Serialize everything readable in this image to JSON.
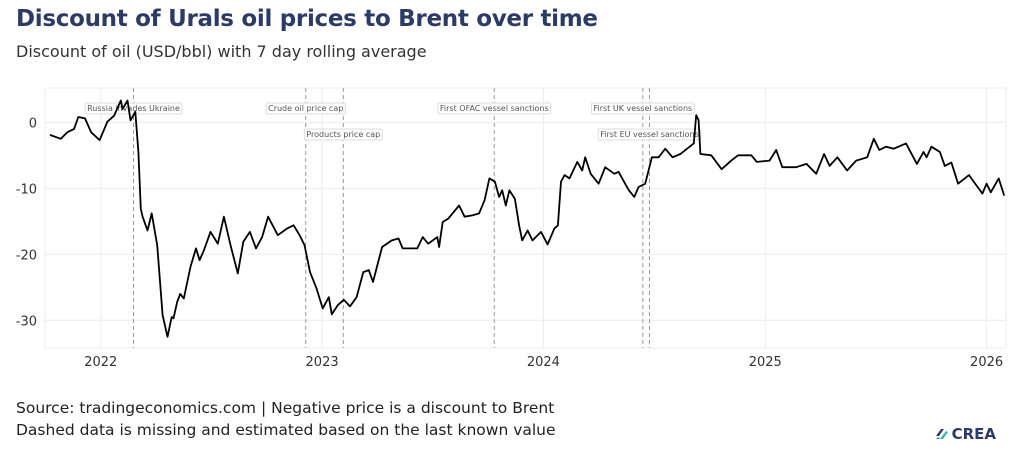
{
  "title": "Discount of Urals oil prices to Brent over time",
  "subtitle": "Discount of oil (USD/bbl) with 7 day rolling average",
  "footer": {
    "line1": "Source: tradingeconomics.com | Negative price is a discount to Brent",
    "line2": "Dashed data is missing and estimated based on the last known value"
  },
  "logo": {
    "text": "CREA",
    "colors": [
      "#2c3a66",
      "#35b7a4",
      "#4a7fc1"
    ]
  },
  "chart_data": {
    "type": "line",
    "title": "",
    "xlabel": "",
    "ylabel": "",
    "xlim": [
      "2021-10-01",
      "2026-02-02"
    ],
    "ylim": [
      -34.2,
      5.2
    ],
    "x_ticks": [
      {
        "date": "2022-01-01",
        "label": "2022"
      },
      {
        "date": "2023-01-01",
        "label": "2023"
      },
      {
        "date": "2024-01-01",
        "label": "2024"
      },
      {
        "date": "2025-01-01",
        "label": "2025"
      },
      {
        "date": "2026-01-01",
        "label": "2026"
      }
    ],
    "y_ticks": [
      0,
      -10,
      -20,
      -30
    ],
    "grid": true,
    "line_color": "#000000",
    "events": [
      {
        "date": "2022-02-24",
        "label": "Russia invades Ukraine",
        "row": 1
      },
      {
        "date": "2022-12-05",
        "label": "Crude oil price cap",
        "row": 1
      },
      {
        "date": "2023-02-05",
        "label": "Products price cap",
        "row": 2
      },
      {
        "date": "2023-10-12",
        "label": "First OFAC vessel sanctions",
        "row": 1
      },
      {
        "date": "2024-06-13",
        "label": "First UK vessel sanctions",
        "row": 1
      },
      {
        "date": "2024-06-24",
        "label": "First EU vessel sanctions",
        "row": 2
      }
    ],
    "series": [
      {
        "points": [
          [
            "2021-10-09",
            -1.9
          ],
          [
            "2021-10-27",
            -2.5
          ],
          [
            "2021-11-07",
            -1.5
          ],
          [
            "2021-11-18",
            -1.0
          ],
          [
            "2021-11-25",
            0.8
          ],
          [
            "2021-12-06",
            0.6
          ],
          [
            "2021-12-16",
            -1.5
          ],
          [
            "2021-12-30",
            -2.7
          ],
          [
            "2022-01-12",
            0.1
          ],
          [
            "2022-01-23",
            1.0
          ],
          [
            "2022-02-03",
            3.3
          ],
          [
            "2022-02-06",
            2.0
          ],
          [
            "2022-02-14",
            3.3
          ],
          [
            "2022-02-19",
            0.3
          ],
          [
            "2022-02-27",
            1.6
          ],
          [
            "2022-03-04",
            -4.5
          ],
          [
            "2022-03-08",
            -13.1
          ],
          [
            "2022-03-11",
            -14.3
          ],
          [
            "2022-03-19",
            -16.4
          ],
          [
            "2022-03-26",
            -13.8
          ],
          [
            "2022-04-04",
            -18.6
          ],
          [
            "2022-04-13",
            -29.2
          ],
          [
            "2022-04-21",
            -32.5
          ],
          [
            "2022-04-28",
            -29.5
          ],
          [
            "2022-05-01",
            -29.7
          ],
          [
            "2022-05-07",
            -27.2
          ],
          [
            "2022-05-12",
            -26.0
          ],
          [
            "2022-05-18",
            -26.7
          ],
          [
            "2022-05-29",
            -21.9
          ],
          [
            "2022-06-07",
            -19.1
          ],
          [
            "2022-06-13",
            -20.9
          ],
          [
            "2022-06-20",
            -19.4
          ],
          [
            "2022-07-01",
            -16.6
          ],
          [
            "2022-07-13",
            -18.4
          ],
          [
            "2022-07-23",
            -14.3
          ],
          [
            "2022-08-03",
            -18.6
          ],
          [
            "2022-08-15",
            -22.9
          ],
          [
            "2022-08-24",
            -18.1
          ],
          [
            "2022-09-04",
            -16.6
          ],
          [
            "2022-09-14",
            -19.1
          ],
          [
            "2022-09-24",
            -17.4
          ],
          [
            "2022-10-04",
            -14.3
          ],
          [
            "2022-10-20",
            -17.1
          ],
          [
            "2022-11-04",
            -16.1
          ],
          [
            "2022-11-15",
            -15.6
          ],
          [
            "2022-11-25",
            -17.1
          ],
          [
            "2022-12-03",
            -18.6
          ],
          [
            "2022-12-12",
            -22.7
          ],
          [
            "2022-12-23",
            -25.2
          ],
          [
            "2023-01-02",
            -28.2
          ],
          [
            "2023-01-12",
            -26.5
          ],
          [
            "2023-01-17",
            -29.1
          ],
          [
            "2023-01-27",
            -27.7
          ],
          [
            "2023-02-06",
            -26.9
          ],
          [
            "2023-02-16",
            -27.9
          ],
          [
            "2023-02-27",
            -26.5
          ],
          [
            "2023-03-10",
            -22.7
          ],
          [
            "2023-03-19",
            -22.4
          ],
          [
            "2023-03-26",
            -24.2
          ],
          [
            "2023-04-10",
            -18.9
          ],
          [
            "2023-04-26",
            -17.9
          ],
          [
            "2023-05-07",
            -17.6
          ],
          [
            "2023-05-14",
            -19.1
          ],
          [
            "2023-06-07",
            -19.1
          ],
          [
            "2023-06-16",
            -17.4
          ],
          [
            "2023-06-25",
            -18.4
          ],
          [
            "2023-07-10",
            -17.4
          ],
          [
            "2023-07-13",
            -18.9
          ],
          [
            "2023-07-19",
            -15.1
          ],
          [
            "2023-07-28",
            -14.6
          ],
          [
            "2023-08-15",
            -12.6
          ],
          [
            "2023-08-24",
            -14.3
          ],
          [
            "2023-09-06",
            -14.1
          ],
          [
            "2023-09-17",
            -13.8
          ],
          [
            "2023-09-26",
            -11.8
          ],
          [
            "2023-10-04",
            -8.5
          ],
          [
            "2023-10-13",
            -9.0
          ],
          [
            "2023-10-20",
            -11.3
          ],
          [
            "2023-10-25",
            -10.3
          ],
          [
            "2023-10-31",
            -12.6
          ],
          [
            "2023-11-06",
            -10.3
          ],
          [
            "2023-11-15",
            -11.6
          ],
          [
            "2023-11-22",
            -15.6
          ],
          [
            "2023-11-27",
            -17.9
          ],
          [
            "2023-12-06",
            -16.4
          ],
          [
            "2023-12-14",
            -17.9
          ],
          [
            "2023-12-28",
            -16.6
          ],
          [
            "2024-01-08",
            -18.5
          ],
          [
            "2024-01-19",
            -16.1
          ],
          [
            "2024-01-25",
            -15.6
          ],
          [
            "2024-01-30",
            -9.0
          ],
          [
            "2024-02-05",
            -8.0
          ],
          [
            "2024-02-13",
            -8.5
          ],
          [
            "2024-02-26",
            -6.0
          ],
          [
            "2024-03-05",
            -7.3
          ],
          [
            "2024-03-10",
            -5.3
          ],
          [
            "2024-03-19",
            -7.8
          ],
          [
            "2024-04-01",
            -9.3
          ],
          [
            "2024-04-12",
            -6.8
          ],
          [
            "2024-04-27",
            -7.8
          ],
          [
            "2024-05-04",
            -7.5
          ],
          [
            "2024-05-13",
            -9.0
          ],
          [
            "2024-05-21",
            -10.3
          ],
          [
            "2024-05-30",
            -11.3
          ],
          [
            "2024-06-06",
            -9.8
          ],
          [
            "2024-06-17",
            -9.3
          ],
          [
            "2024-06-28",
            -5.3
          ],
          [
            "2024-07-09",
            -5.3
          ],
          [
            "2024-07-20",
            -4.0
          ],
          [
            "2024-08-01",
            -5.3
          ],
          [
            "2024-08-14",
            -4.8
          ],
          [
            "2024-08-25",
            -4.0
          ],
          [
            "2024-09-05",
            -3.2
          ],
          [
            "2024-09-09",
            1.1
          ],
          [
            "2024-09-13",
            0.3
          ],
          [
            "2024-09-16",
            -4.8
          ],
          [
            "2024-10-04",
            -5.0
          ],
          [
            "2024-10-21",
            -7.1
          ],
          [
            "2024-11-06",
            -5.8
          ],
          [
            "2024-11-17",
            -5.0
          ],
          [
            "2024-12-09",
            -5.0
          ],
          [
            "2024-12-18",
            -6.0
          ],
          [
            "2025-01-08",
            -5.8
          ],
          [
            "2025-01-19",
            -4.2
          ],
          [
            "2025-01-29",
            -6.8
          ],
          [
            "2025-02-21",
            -6.8
          ],
          [
            "2025-03-10",
            -6.3
          ],
          [
            "2025-03-26",
            -7.8
          ],
          [
            "2025-04-08",
            -4.8
          ],
          [
            "2025-04-17",
            -6.6
          ],
          [
            "2025-04-30",
            -5.3
          ],
          [
            "2025-05-16",
            -7.3
          ],
          [
            "2025-05-31",
            -5.8
          ],
          [
            "2025-06-18",
            -5.3
          ],
          [
            "2025-06-29",
            -2.5
          ],
          [
            "2025-07-08",
            -4.2
          ],
          [
            "2025-07-19",
            -3.7
          ],
          [
            "2025-08-01",
            -4.0
          ],
          [
            "2025-08-21",
            -3.2
          ],
          [
            "2025-09-08",
            -6.3
          ],
          [
            "2025-09-19",
            -4.5
          ],
          [
            "2025-09-24",
            -5.3
          ],
          [
            "2025-10-02",
            -3.7
          ],
          [
            "2025-10-16",
            -4.5
          ],
          [
            "2025-10-24",
            -6.6
          ],
          [
            "2025-11-04",
            -6.1
          ],
          [
            "2025-11-15",
            -9.3
          ],
          [
            "2025-12-03",
            -8.0
          ],
          [
            "2025-12-25",
            -10.8
          ],
          [
            "2026-01-01",
            -9.3
          ],
          [
            "2026-01-08",
            -10.6
          ],
          [
            "2026-01-21",
            -8.5
          ],
          [
            "2026-01-30",
            -11.1
          ]
        ]
      }
    ]
  }
}
